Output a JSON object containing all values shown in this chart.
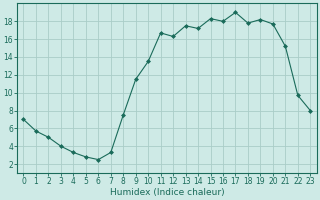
{
  "x": [
    0,
    1,
    2,
    3,
    4,
    5,
    6,
    7,
    8,
    9,
    10,
    11,
    12,
    13,
    14,
    15,
    16,
    17,
    18,
    19,
    20,
    21,
    22,
    23
  ],
  "y": [
    7.0,
    5.7,
    5.0,
    4.0,
    3.3,
    2.8,
    2.5,
    3.3,
    7.5,
    11.5,
    13.5,
    16.7,
    16.3,
    17.5,
    17.2,
    18.3,
    18.0,
    19.0,
    17.8,
    18.2,
    17.7,
    15.2,
    9.7,
    8.0
  ],
  "line_color": "#1a6b5a",
  "marker": "D",
  "marker_size": 2.0,
  "bg_color": "#ceeae6",
  "grid_color": "#aacdc8",
  "xlabel": "Humidex (Indice chaleur)",
  "xlim": [
    -0.5,
    23.5
  ],
  "ylim": [
    1.0,
    20.0
  ],
  "yticks": [
    2,
    4,
    6,
    8,
    10,
    12,
    14,
    16,
    18
  ],
  "xticks": [
    0,
    1,
    2,
    3,
    4,
    5,
    6,
    7,
    8,
    9,
    10,
    11,
    12,
    13,
    14,
    15,
    16,
    17,
    18,
    19,
    20,
    21,
    22,
    23
  ],
  "tick_fontsize": 5.5,
  "label_fontsize": 6.5
}
